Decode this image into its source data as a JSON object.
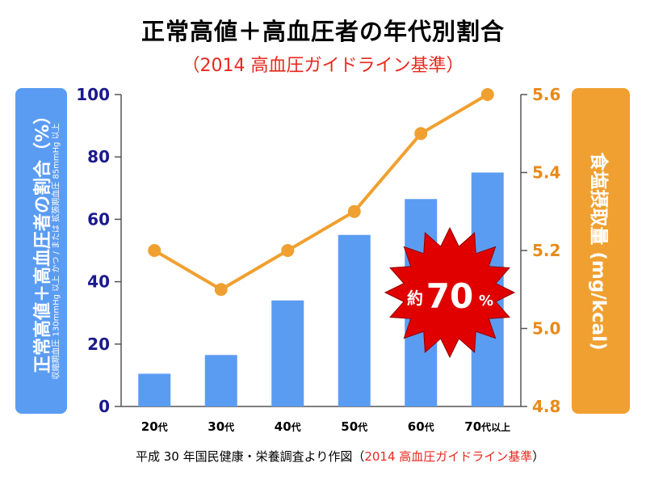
{
  "title": "正常高値＋高血圧者の年代別割合",
  "subtitle": "（2014 高血圧ガイドライン基準）",
  "left_axis_title": "正常高値＋高血圧者の割合（%）",
  "left_axis_note": "収縮期血圧 130mmHg 以上 かつ / または 拡張期血圧 85mmHg 以上",
  "right_axis_title": "食塩摂取量 (mg/kcal)",
  "footer": {
    "text": "平成 30 年国民健康・栄養調査より作図（",
    "highlight": "2014 高血圧ガイドライン基準",
    "close": "）"
  },
  "badge": {
    "prefix": "約",
    "value": "70",
    "suffix": "%"
  },
  "chart_data": {
    "type": "bar+line",
    "title": "正常高値＋高血圧者の年代別割合",
    "categories": [
      {
        "num": "20",
        "suffix": "代"
      },
      {
        "num": "30",
        "suffix": "代"
      },
      {
        "num": "40",
        "suffix": "代"
      },
      {
        "num": "50",
        "suffix": "代"
      },
      {
        "num": "60",
        "suffix": "代"
      },
      {
        "num": "70",
        "suffix": "代以上"
      }
    ],
    "bar_series": {
      "name": "正常高値＋高血圧者の割合（%）",
      "values": [
        10.5,
        16.5,
        34,
        55,
        66.5,
        75
      ],
      "color": "#5b9cf3",
      "ylim": [
        0,
        100
      ],
      "ticks": [
        "0",
        "20",
        "40",
        "60",
        "80",
        "100"
      ]
    },
    "line_series": {
      "name": "食塩摂取量 (mg/kcal)",
      "values": [
        5.2,
        5.1,
        5.2,
        5.3,
        5.5,
        5.6
      ],
      "color": "#f0a030",
      "ylim": [
        4.8,
        5.6
      ],
      "ticks": [
        "4.8",
        "5.0",
        "5.2",
        "5.4",
        "5.6"
      ]
    },
    "left_axis_color": "#1a1a8c",
    "right_axis_color": "#e88a1a",
    "grid": false
  }
}
